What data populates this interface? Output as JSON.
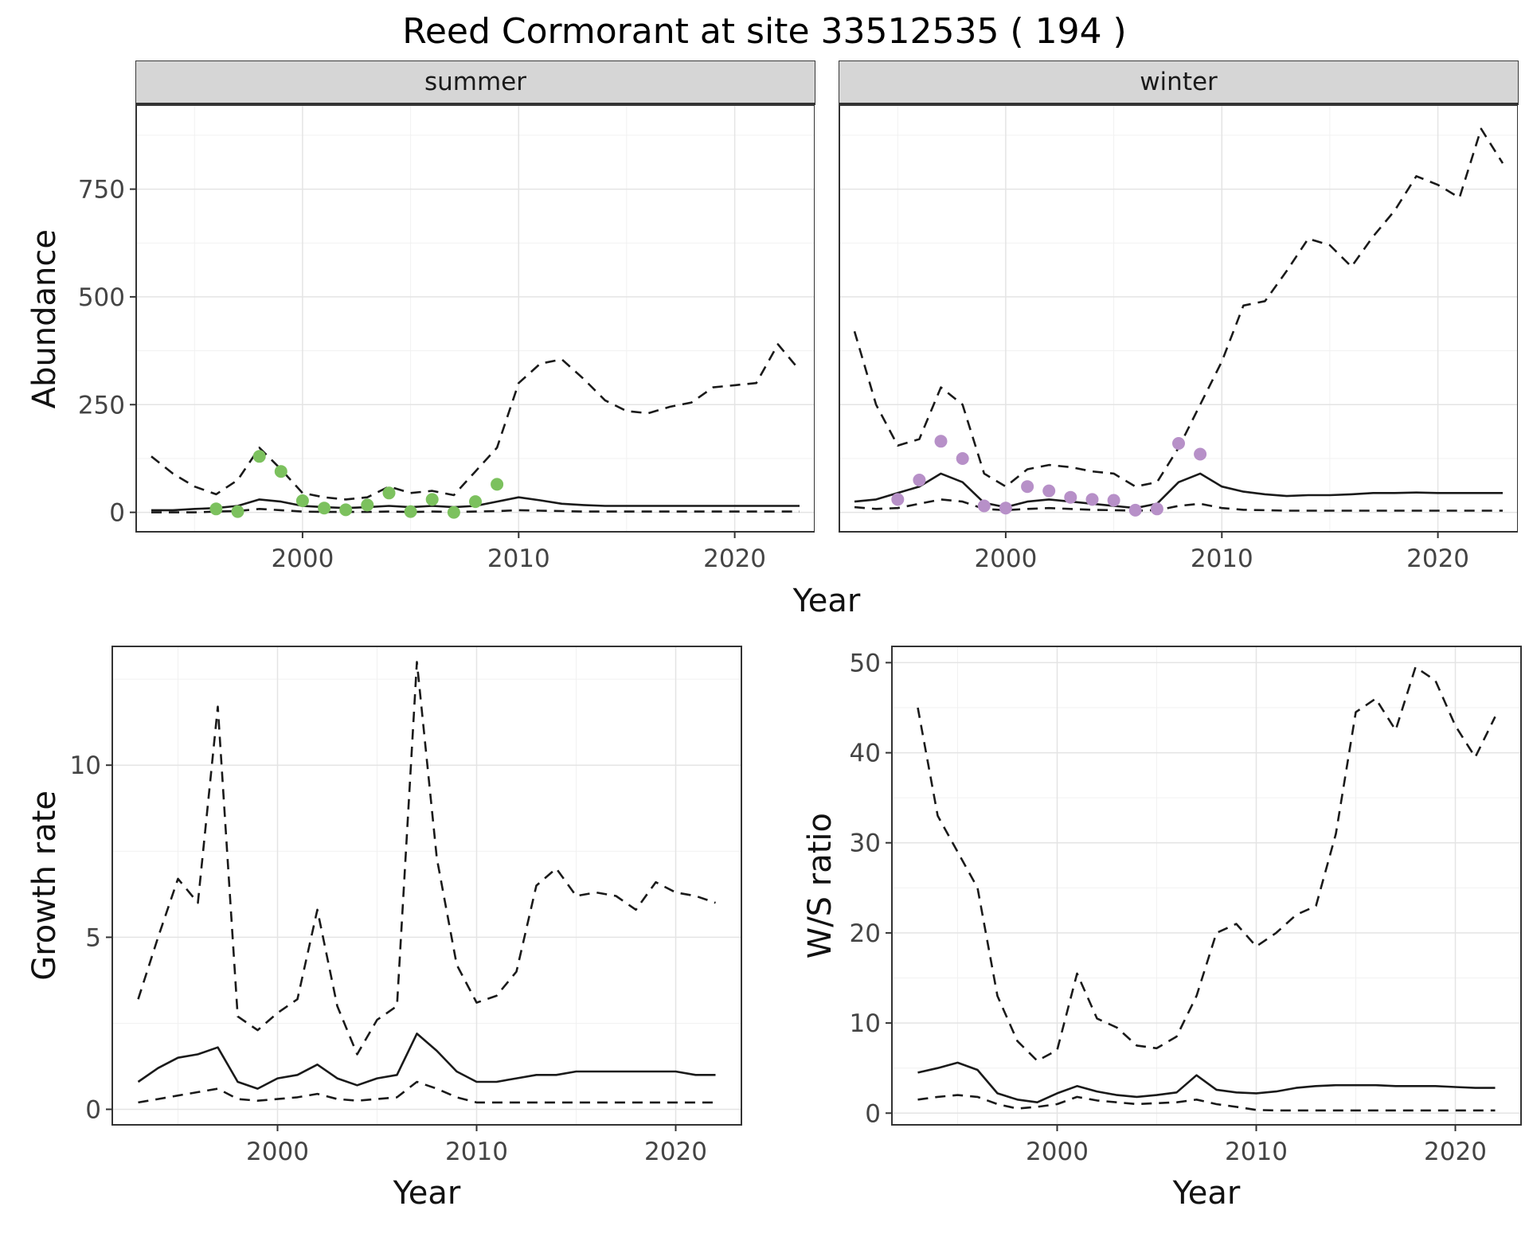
{
  "title": "Reed Cormorant at site 33512535 ( 194 )",
  "top_row": {
    "ylabel": "Abundance",
    "xlabel": "Year"
  },
  "style": {
    "line_color": "#1a1a1a",
    "grid_major": "#e4e4e4",
    "grid_minor": "#f1f1f1",
    "panel_border": "#333333",
    "strip_bg": "#d6d6d6",
    "summer_point": "#7cc15e",
    "winter_point": "#b790c8"
  },
  "chart_data": [
    {
      "type": "line",
      "facet": "summer",
      "xlabel": "Year",
      "ylabel": "Abundance",
      "xlim": [
        1992.3,
        2023.7
      ],
      "ylim": [
        -45,
        945
      ],
      "xticks": [
        2000,
        2010,
        2020
      ],
      "xticks_minor": [
        1995,
        2005,
        2015
      ],
      "yticks": [
        0,
        250,
        500,
        750
      ],
      "yticks_minor": [
        125,
        375,
        625,
        875
      ],
      "x": [
        1993,
        1994,
        1995,
        1996,
        1997,
        1998,
        1999,
        2000,
        2001,
        2002,
        2003,
        2004,
        2005,
        2006,
        2007,
        2008,
        2009,
        2010,
        2011,
        2012,
        2013,
        2014,
        2015,
        2016,
        2017,
        2018,
        2019,
        2020,
        2021,
        2022,
        2023
      ],
      "series": [
        {
          "name": "median",
          "style": "solid",
          "y": [
            5,
            5,
            8,
            10,
            15,
            30,
            25,
            15,
            12,
            10,
            12,
            15,
            12,
            15,
            12,
            15,
            25,
            35,
            28,
            20,
            17,
            15,
            15,
            15,
            15,
            15,
            15,
            15,
            15,
            15,
            15
          ]
        },
        {
          "name": "upper_ci",
          "style": "dashed",
          "y": [
            130,
            90,
            60,
            42,
            75,
            150,
            100,
            45,
            35,
            30,
            35,
            60,
            45,
            50,
            40,
            95,
            150,
            300,
            345,
            355,
            310,
            260,
            235,
            230,
            245,
            255,
            290,
            295,
            300,
            390,
            330
          ]
        },
        {
          "name": "lower_ci",
          "style": "dashed",
          "y": [
            0,
            0,
            0,
            2,
            3,
            8,
            5,
            2,
            1,
            1,
            1,
            2,
            1,
            2,
            1,
            2,
            3,
            5,
            4,
            3,
            2,
            2,
            2,
            2,
            2,
            2,
            2,
            2,
            2,
            2,
            2
          ]
        }
      ],
      "points": {
        "name": "observed-counts-summer",
        "color_key": "summer_point",
        "x": [
          1996,
          1997,
          1998,
          1999,
          2000,
          2001,
          2002,
          2003,
          2004,
          2005,
          2006,
          2007,
          2008,
          2009
        ],
        "y": [
          8,
          2,
          130,
          95,
          27,
          10,
          6,
          17,
          45,
          2,
          30,
          0,
          25,
          65
        ]
      }
    },
    {
      "type": "line",
      "facet": "winter",
      "xlabel": "Year",
      "ylabel": "Abundance",
      "xlim": [
        1992.3,
        2023.7
      ],
      "ylim": [
        -45,
        945
      ],
      "xticks": [
        2000,
        2010,
        2020
      ],
      "xticks_minor": [
        1995,
        2005,
        2015
      ],
      "yticks": [
        0,
        250,
        500,
        750
      ],
      "yticks_minor": [
        125,
        375,
        625,
        875
      ],
      "x": [
        1993,
        1994,
        1995,
        1996,
        1997,
        1998,
        1999,
        2000,
        2001,
        2002,
        2003,
        2004,
        2005,
        2006,
        2007,
        2008,
        2009,
        2010,
        2011,
        2012,
        2013,
        2014,
        2015,
        2016,
        2017,
        2018,
        2019,
        2020,
        2021,
        2022,
        2023
      ],
      "series": [
        {
          "name": "median",
          "style": "solid",
          "y": [
            25,
            30,
            45,
            60,
            90,
            70,
            22,
            12,
            25,
            30,
            25,
            20,
            15,
            10,
            20,
            70,
            90,
            60,
            48,
            42,
            38,
            40,
            40,
            42,
            45,
            45,
            46,
            45,
            45,
            45,
            45
          ]
        },
        {
          "name": "upper_ci",
          "style": "dashed",
          "y": [
            420,
            250,
            155,
            170,
            290,
            250,
            90,
            60,
            100,
            110,
            105,
            95,
            90,
            60,
            70,
            150,
            250,
            350,
            480,
            490,
            560,
            635,
            620,
            570,
            640,
            700,
            780,
            760,
            730,
            890,
            810
          ]
        },
        {
          "name": "lower_ci",
          "style": "dashed",
          "y": [
            12,
            8,
            10,
            20,
            30,
            25,
            8,
            5,
            8,
            10,
            8,
            6,
            5,
            4,
            5,
            15,
            20,
            10,
            6,
            5,
            4,
            4,
            4,
            4,
            4,
            4,
            4,
            4,
            4,
            4,
            4
          ]
        }
      ],
      "points": {
        "name": "observed-counts-winter",
        "color_key": "winter_point",
        "x": [
          1995,
          1996,
          1997,
          1998,
          1999,
          2000,
          2001,
          2002,
          2003,
          2004,
          2005,
          2006,
          2007,
          2008,
          2009
        ],
        "y": [
          30,
          75,
          165,
          125,
          15,
          10,
          60,
          50,
          35,
          30,
          28,
          5,
          8,
          160,
          135
        ]
      }
    },
    {
      "type": "line",
      "facet": null,
      "xlabel": "Year",
      "ylabel": "Growth rate",
      "xlim": [
        1991.7,
        2023.3
      ],
      "ylim": [
        -0.45,
        13.45
      ],
      "xticks": [
        2000,
        2010,
        2020
      ],
      "xticks_minor": [
        1995,
        2005,
        2015
      ],
      "yticks": [
        0,
        5,
        10
      ],
      "yticks_minor": [
        2.5,
        7.5,
        12.5
      ],
      "x": [
        1993,
        1994,
        1995,
        1996,
        1997,
        1998,
        1999,
        2000,
        2001,
        2002,
        2003,
        2004,
        2005,
        2006,
        2007,
        2008,
        2009,
        2010,
        2011,
        2012,
        2013,
        2014,
        2015,
        2016,
        2017,
        2018,
        2019,
        2020,
        2021,
        2022
      ],
      "series": [
        {
          "name": "median",
          "style": "solid",
          "y": [
            0.8,
            1.2,
            1.5,
            1.6,
            1.8,
            0.8,
            0.6,
            0.9,
            1.0,
            1.3,
            0.9,
            0.7,
            0.9,
            1.0,
            2.2,
            1.7,
            1.1,
            0.8,
            0.8,
            0.9,
            1.0,
            1.0,
            1.1,
            1.1,
            1.1,
            1.1,
            1.1,
            1.1,
            1.0,
            1.0
          ]
        },
        {
          "name": "upper_ci",
          "style": "dashed",
          "y": [
            3.2,
            5.0,
            6.7,
            6.0,
            11.7,
            2.7,
            2.3,
            2.8,
            3.2,
            5.8,
            3.0,
            1.6,
            2.6,
            3.0,
            13.0,
            7.3,
            4.2,
            3.1,
            3.3,
            4.0,
            6.5,
            7.0,
            6.2,
            6.3,
            6.2,
            5.8,
            6.6,
            6.3,
            6.2,
            6.0
          ]
        },
        {
          "name": "lower_ci",
          "style": "dashed",
          "y": [
            0.2,
            0.3,
            0.4,
            0.5,
            0.6,
            0.3,
            0.25,
            0.3,
            0.35,
            0.45,
            0.3,
            0.25,
            0.3,
            0.35,
            0.8,
            0.6,
            0.35,
            0.2,
            0.2,
            0.2,
            0.2,
            0.2,
            0.2,
            0.2,
            0.2,
            0.2,
            0.2,
            0.2,
            0.2,
            0.2
          ]
        }
      ],
      "points": null
    },
    {
      "type": "line",
      "facet": null,
      "xlabel": "Year",
      "ylabel": "W/S ratio",
      "xlim": [
        1991.7,
        2023.3
      ],
      "ylim": [
        -1.3,
        51.8
      ],
      "xticks": [
        2000,
        2010,
        2020
      ],
      "xticks_minor": [
        1995,
        2005,
        2015
      ],
      "yticks": [
        0,
        10,
        20,
        30,
        40,
        50
      ],
      "yticks_minor": [
        5,
        15,
        25,
        35,
        45
      ],
      "x": [
        1993,
        1994,
        1995,
        1996,
        1997,
        1998,
        1999,
        2000,
        2001,
        2002,
        2003,
        2004,
        2005,
        2006,
        2007,
        2008,
        2009,
        2010,
        2011,
        2012,
        2013,
        2014,
        2015,
        2016,
        2017,
        2018,
        2019,
        2020,
        2021,
        2022
      ],
      "series": [
        {
          "name": "median",
          "style": "solid",
          "y": [
            4.5,
            5.0,
            5.6,
            4.8,
            2.2,
            1.5,
            1.2,
            2.2,
            3.0,
            2.4,
            2.0,
            1.8,
            2.0,
            2.3,
            4.2,
            2.6,
            2.3,
            2.2,
            2.4,
            2.8,
            3.0,
            3.1,
            3.1,
            3.1,
            3.0,
            3.0,
            3.0,
            2.9,
            2.8,
            2.8
          ]
        },
        {
          "name": "upper_ci",
          "style": "dashed",
          "y": [
            45,
            33,
            29,
            25,
            13,
            8,
            5.8,
            7,
            15.5,
            10.5,
            9.5,
            7.5,
            7.2,
            8.5,
            13,
            20,
            21,
            18.5,
            20,
            22,
            23,
            31,
            44.5,
            46,
            42.5,
            49.5,
            48,
            43,
            39.5,
            44
          ]
        },
        {
          "name": "lower_ci",
          "style": "dashed",
          "y": [
            1.5,
            1.8,
            2.0,
            1.8,
            1.0,
            0.5,
            0.7,
            1.0,
            1.8,
            1.4,
            1.2,
            1.0,
            1.1,
            1.2,
            1.5,
            1.0,
            0.7,
            0.35,
            0.3,
            0.3,
            0.3,
            0.3,
            0.3,
            0.3,
            0.3,
            0.3,
            0.3,
            0.3,
            0.3,
            0.3
          ]
        }
      ],
      "points": null
    }
  ]
}
